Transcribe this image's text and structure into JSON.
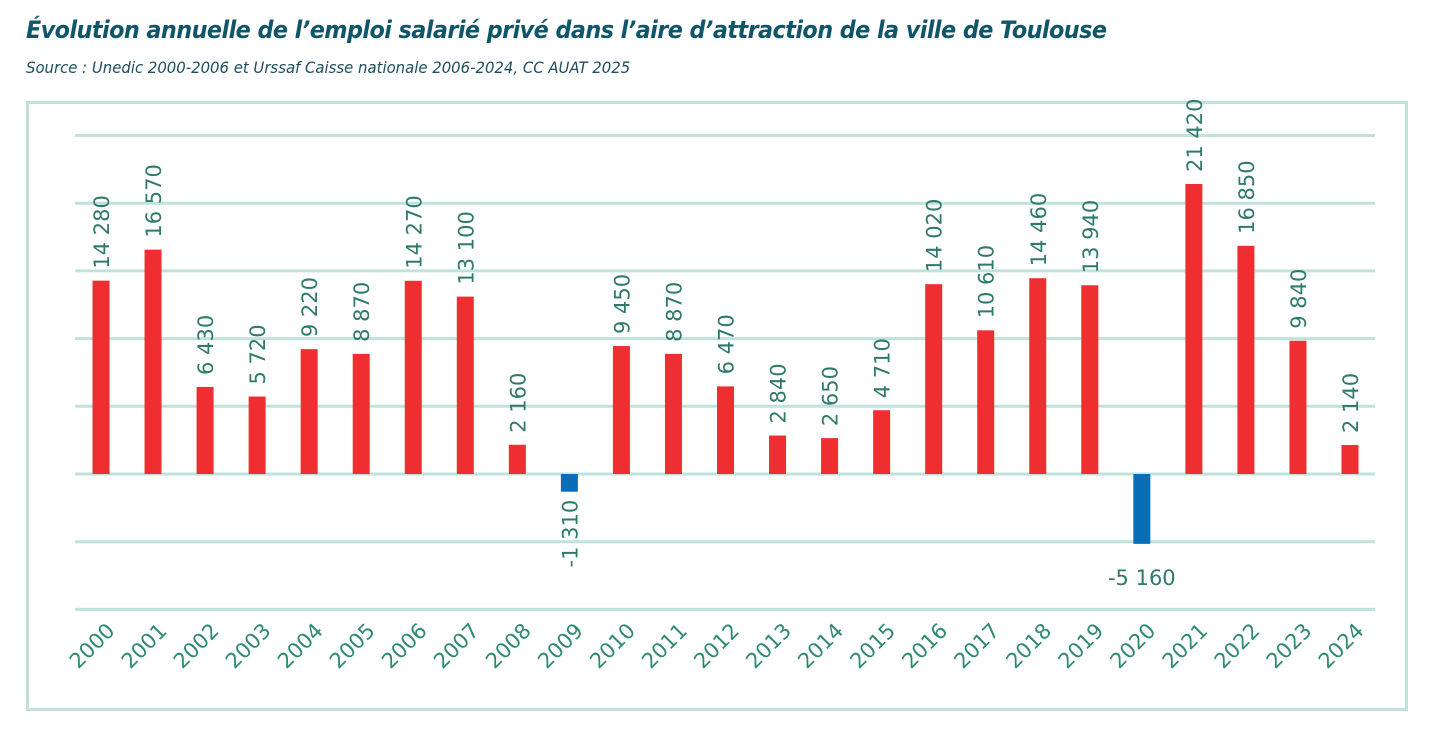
{
  "title": "Évolution annuelle de l’emploi salarié privé dans l’aire d’attraction de la ville de Toulouse",
  "subtitle": "Source : Unedic 2000-2006 et Urssaf Caisse nationale 2006-2024, CC AUAT 2025",
  "chart_data": {
    "type": "bar",
    "title": "Évolution annuelle de l’emploi salarié privé dans l’aire d’attraction de la ville de Toulouse",
    "xlabel": "",
    "ylabel": "",
    "ylim": [
      -10000,
      25000
    ],
    "grid": true,
    "y_gridlines": [
      -10000,
      -5000,
      0,
      5000,
      10000,
      15000,
      20000,
      25000
    ],
    "categories": [
      "2000",
      "2001",
      "2002",
      "2003",
      "2004",
      "2005",
      "2006",
      "2007",
      "2008",
      "2009",
      "2010",
      "2011",
      "2012",
      "2013",
      "2014",
      "2015",
      "2016",
      "2017",
      "2018",
      "2019",
      "2020",
      "2021",
      "2022",
      "2023",
      "2024"
    ],
    "values": [
      14280,
      16570,
      6430,
      5720,
      9220,
      8870,
      14270,
      13100,
      2160,
      -1310,
      9450,
      8870,
      6470,
      2840,
      2650,
      4710,
      14020,
      10610,
      14460,
      13940,
      -5160,
      21420,
      16850,
      9840,
      2140
    ],
    "data_labels": [
      "14 280",
      "16 570",
      "6 430",
      "5 720",
      "9 220",
      "8 870",
      "14 270",
      "13 100",
      "2 160",
      "-1 310",
      "9 450",
      "8 870",
      "6 470",
      "2 840",
      "2 650",
      "4 710",
      "14 020",
      "10 610",
      "14 460",
      "13 940",
      "-5 160",
      "21 420",
      "16 850",
      "9 840",
      "2 140"
    ],
    "colors": {
      "positive": "#ee2e31",
      "negative": "#0a6eb4",
      "grid": "#bfe3dc",
      "frame": "#bfe3dc",
      "label": "#2f7a6a",
      "tick_label": "#2e8a70"
    }
  }
}
